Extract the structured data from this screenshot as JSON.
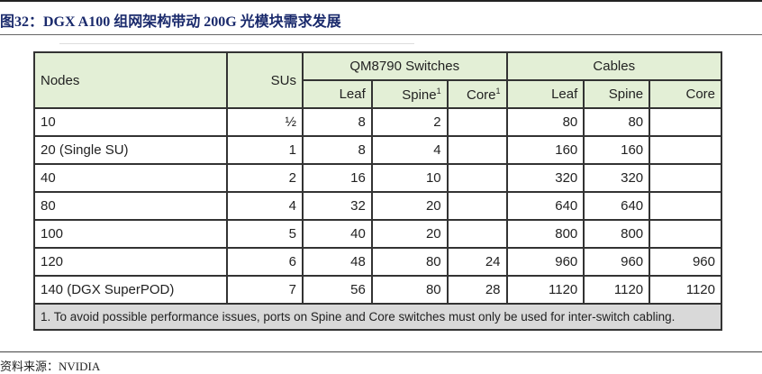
{
  "title": "图32：DGX A100 组网架构带动 200G 光模块需求发展",
  "table": {
    "headers": {
      "nodes": "Nodes",
      "sus": "SUs",
      "switches": "QM8790 Switches",
      "cables": "Cables",
      "leaf": "Leaf",
      "spine": "Spine",
      "core": "Core",
      "sup": "1"
    },
    "rows": [
      [
        "10",
        "½",
        "8",
        "2",
        "",
        "80",
        "80",
        ""
      ],
      [
        "20 (Single SU)",
        "1",
        "8",
        "4",
        "",
        "160",
        "160",
        ""
      ],
      [
        "40",
        "2",
        "16",
        "10",
        "",
        "320",
        "320",
        ""
      ],
      [
        "80",
        "4",
        "32",
        "20",
        "",
        "640",
        "640",
        ""
      ],
      [
        "100",
        "5",
        "40",
        "20",
        "",
        "800",
        "800",
        ""
      ],
      [
        "120",
        "6",
        "48",
        "80",
        "24",
        "960",
        "960",
        "960"
      ],
      [
        "140 (DGX SuperPOD)",
        "7",
        "56",
        "80",
        "28",
        "1120",
        "1120",
        "1120"
      ]
    ],
    "footnote": "1. To avoid possible performance issues, ports on Spine and Core switches must only be used for inter-switch cabling."
  },
  "source": "资料来源：NVIDIA"
}
